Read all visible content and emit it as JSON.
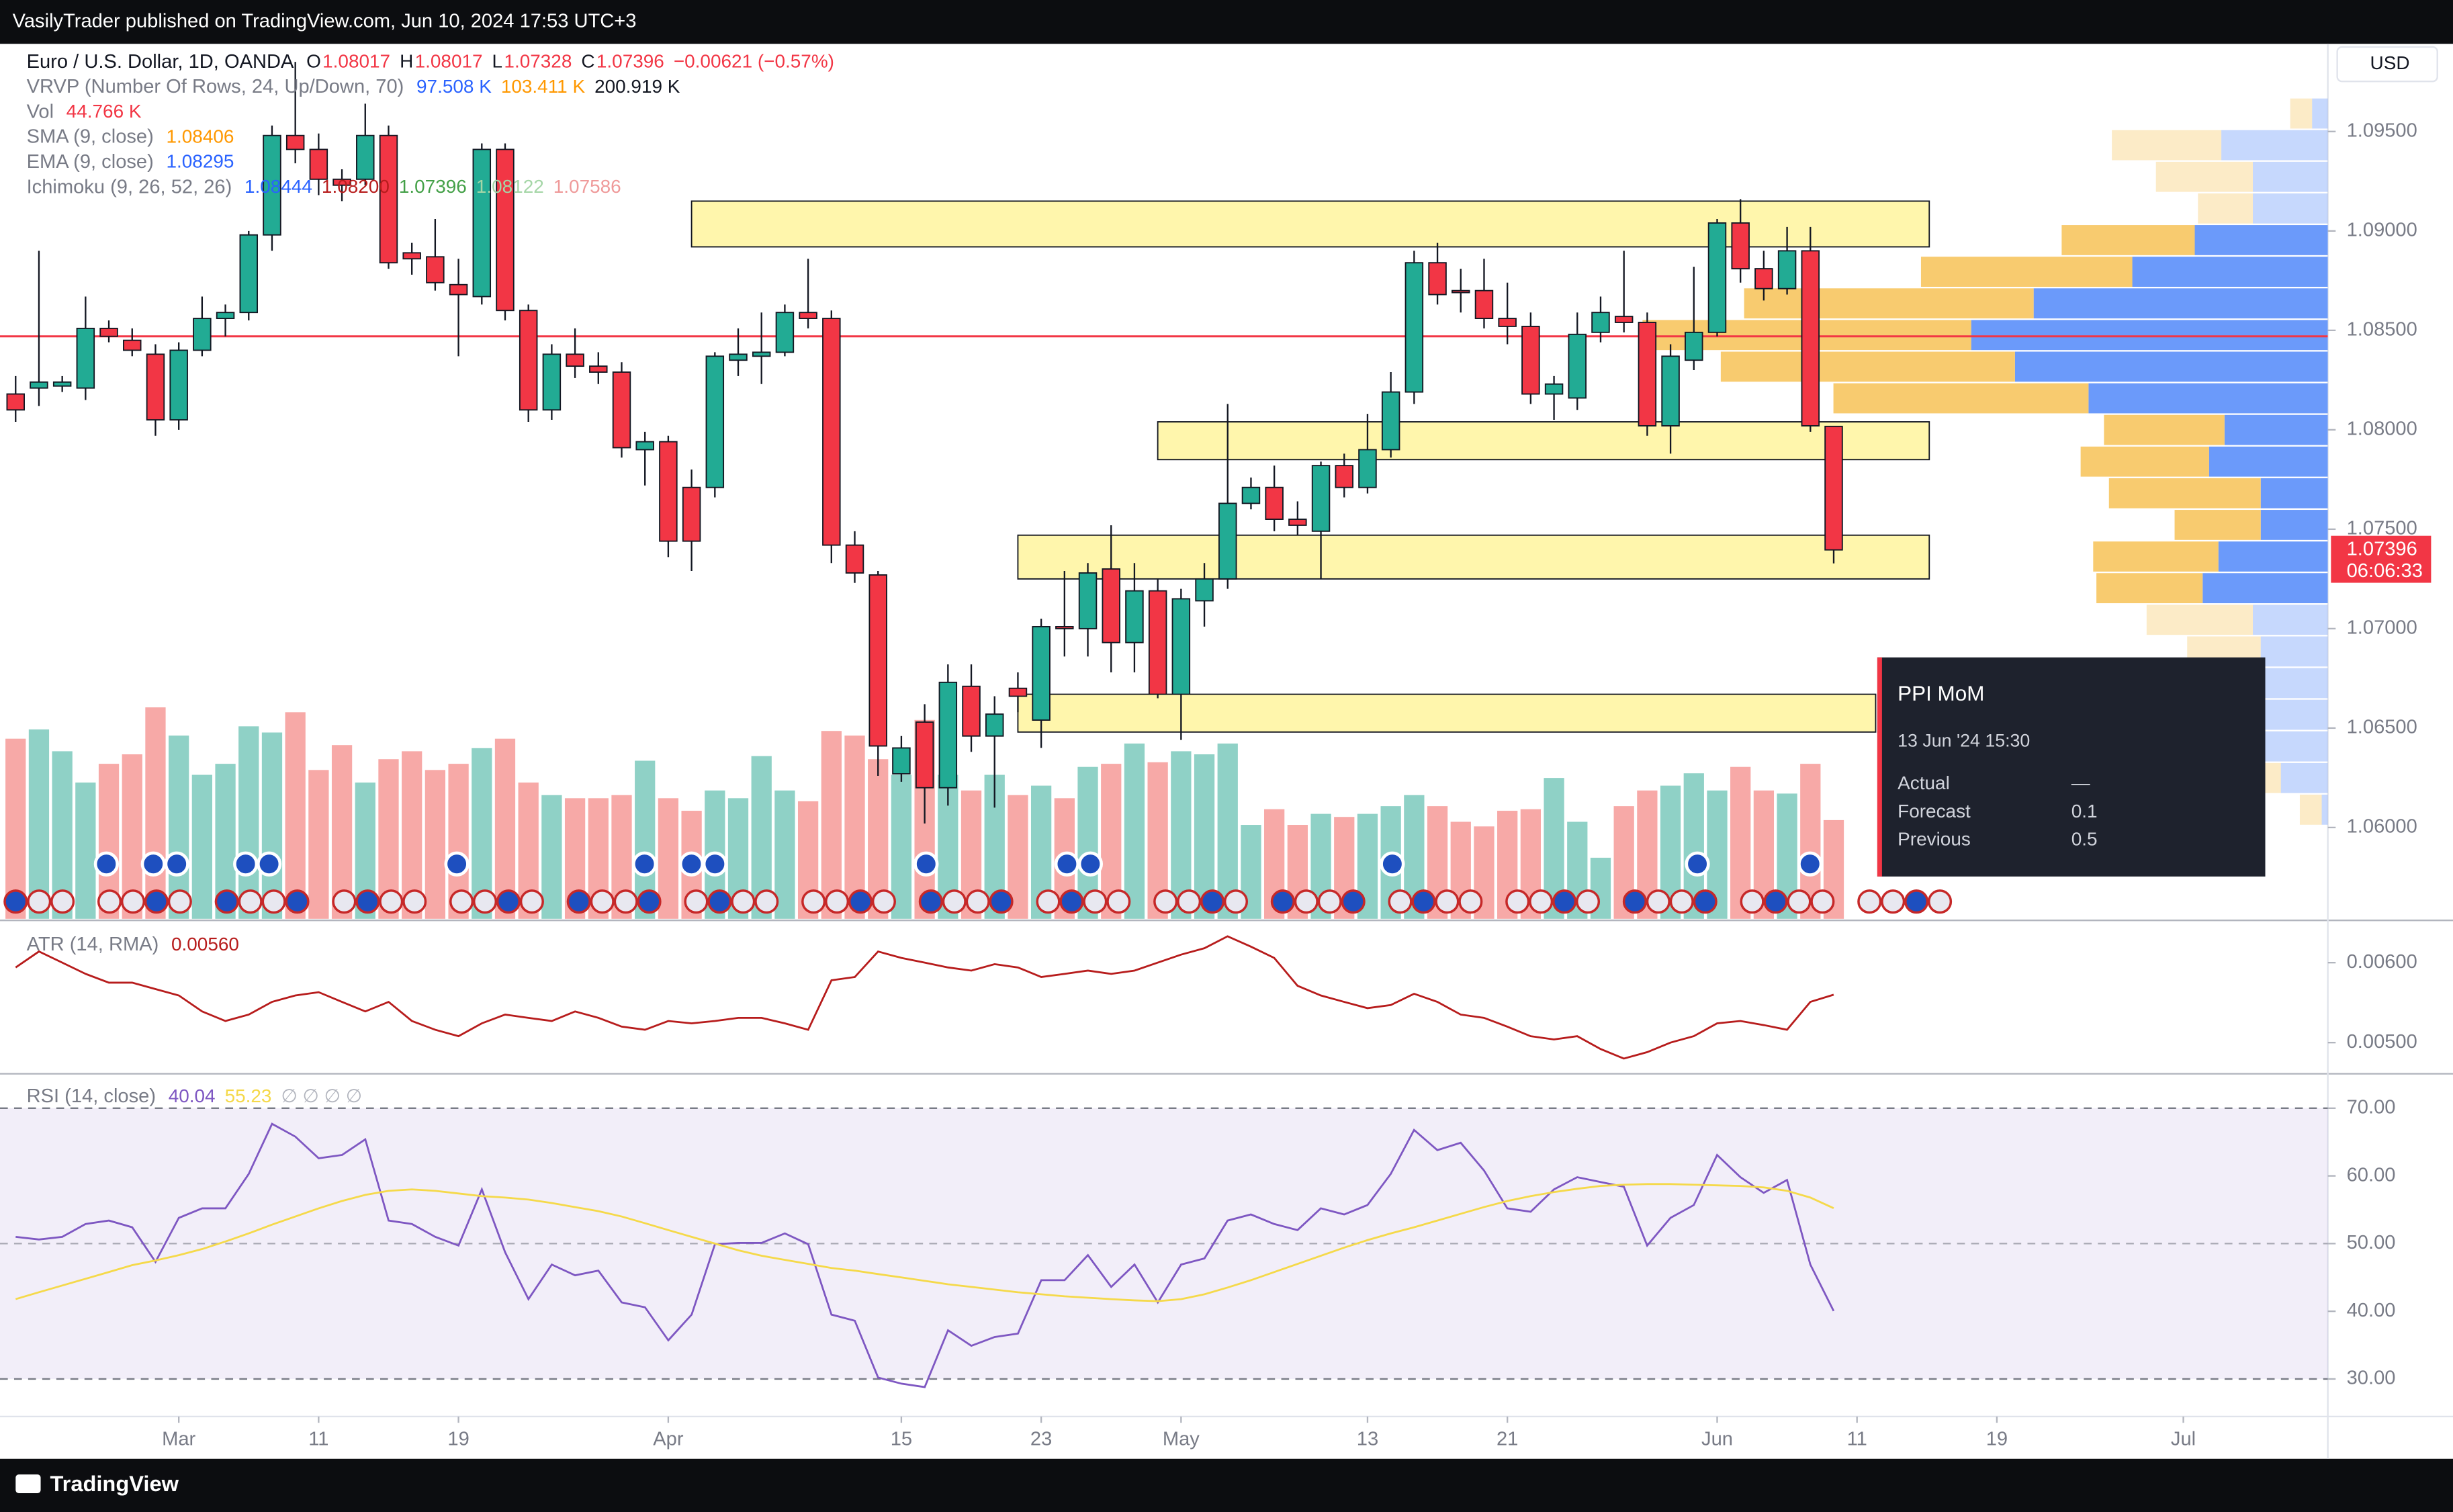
{
  "header": {
    "published": "VasilyTrader published on TradingView.com, Jun 10, 2024 17:53 UTC+3",
    "currency": "USD",
    "footer": "TradingView"
  },
  "legend": [
    {
      "label": "Euro / U.S. Dollar, 1D, OANDA",
      "values": [
        "O",
        "1.08017",
        "H",
        "1.08017",
        "L",
        "1.07328",
        "C",
        "1.07396",
        "−0.00621 (−0.57%)"
      ],
      "colors": [
        "#131722",
        "#f23645",
        "#131722",
        "#f23645",
        "#131722",
        "#f23645",
        "#131722",
        "#f23645",
        "#f23645"
      ]
    },
    {
      "label": "VRVP (Number Of Rows, 24, Up/Down, 70)",
      "values": [
        "97.508 K",
        "103.411 K",
        "200.919 K"
      ],
      "colors": [
        "#2962ff",
        "#ff9800",
        "#131722"
      ]
    },
    {
      "label": "Vol",
      "values": [
        "44.766 K"
      ],
      "colors": [
        "#f23645"
      ]
    },
    {
      "label": "SMA (9, close)",
      "values": [
        "1.08406"
      ],
      "colors": [
        "#ff9800"
      ]
    },
    {
      "label": "EMA (9, close)",
      "values": [
        "1.08295"
      ],
      "colors": [
        "#2962ff"
      ]
    },
    {
      "label": "Ichimoku (9, 26, 52, 26)",
      "values": [
        "1.08444",
        "1.08200",
        "1.07396",
        "1.08122",
        "1.07586"
      ],
      "colors": [
        "#2962ff",
        "#b71c1c",
        "#43a047",
        "#a5d6a7",
        "#ef9a9a"
      ]
    }
  ],
  "last_price_label": {
    "price": "1.07396",
    "countdown": "06:06:33"
  },
  "tooltip": {
    "title": "PPI MoM",
    "time": "13 Jun '24 15:30",
    "rows": [
      [
        "Actual",
        "—"
      ],
      [
        "Forecast",
        "0.1"
      ],
      [
        "Previous",
        "0.5"
      ]
    ]
  },
  "chart_data": [
    {
      "type": "candlestick",
      "up_color": "#22ab94",
      "down_color": "#f23645",
      "volume_up_color": "#8fd1c6",
      "volume_down_color": "#f7a9a7",
      "xlim": [
        -0.67,
        99.2
      ],
      "xticks": [
        {
          "value": 7,
          "label": "Mar"
        },
        {
          "value": 13,
          "label": "11"
        },
        {
          "value": 19,
          "label": "19"
        },
        {
          "value": 28,
          "label": "Apr"
        },
        {
          "value": 38,
          "label": "15"
        },
        {
          "value": 44,
          "label": "23"
        },
        {
          "value": 50,
          "label": "May"
        },
        {
          "value": 58,
          "label": "13"
        },
        {
          "value": 64,
          "label": "21"
        },
        {
          "value": 73,
          "label": "Jun"
        },
        {
          "value": 79,
          "label": "11"
        },
        {
          "value": 85,
          "label": "19"
        },
        {
          "value": 93,
          "label": "Jul"
        }
      ],
      "ylim": [
        1.05533,
        1.09941
      ],
      "yticks": [
        {
          "value": 1.095,
          "label": "1.09500"
        },
        {
          "value": 1.09,
          "label": "1.09000"
        },
        {
          "value": 1.085,
          "label": "1.08500"
        },
        {
          "value": 1.08,
          "label": "1.08000"
        },
        {
          "value": 1.075,
          "label": "1.07500"
        },
        {
          "value": 1.07,
          "label": "1.07000"
        },
        {
          "value": 1.065,
          "label": "1.06500"
        },
        {
          "value": 1.06,
          "label": "1.06000"
        }
      ],
      "open": [
        1.0818,
        1.0821,
        1.0822,
        1.0821,
        1.0851,
        1.0845,
        1.0838,
        1.0805,
        1.084,
        1.0856,
        1.0859,
        1.0898,
        1.0948,
        1.0941,
        1.0926,
        1.0926,
        1.0948,
        1.0889,
        1.0887,
        1.0873,
        1.0867,
        1.0941,
        1.086,
        1.081,
        1.0838,
        1.0832,
        1.0829,
        1.079,
        1.0794,
        1.0771,
        1.0771,
        1.0835,
        1.0837,
        1.0839,
        1.0859,
        1.0856,
        1.0742,
        1.0727,
        1.0627,
        1.0653,
        1.062,
        1.0671,
        1.0646,
        1.067,
        1.0654,
        1.0701,
        1.07,
        1.073,
        1.0693,
        1.0719,
        1.0667,
        1.0714,
        1.0725,
        1.0763,
        1.0771,
        1.0755,
        1.0749,
        1.0782,
        1.0771,
        1.079,
        1.0819,
        1.0884,
        1.087,
        1.087,
        1.0856,
        1.0852,
        1.0818,
        1.0816,
        1.0849,
        1.0857,
        1.0854,
        1.0802,
        1.0835,
        1.0849,
        1.0904,
        1.0881,
        1.0871,
        1.089,
        1.08017
      ],
      "high": [
        1.0827,
        1.089,
        1.0827,
        1.0867,
        1.0855,
        1.0851,
        1.0843,
        1.0844,
        1.0867,
        1.0863,
        1.09,
        1.0953,
        1.0985,
        1.0949,
        1.0931,
        1.0964,
        1.0953,
        1.0894,
        1.0906,
        1.0886,
        1.0944,
        1.0944,
        1.0863,
        1.0843,
        1.0851,
        1.0839,
        1.0834,
        1.0799,
        1.0797,
        1.078,
        1.0839,
        1.0851,
        1.0859,
        1.0863,
        1.0886,
        1.086,
        1.0749,
        1.0729,
        1.0646,
        1.0662,
        1.0682,
        1.0682,
        1.0666,
        1.0678,
        1.0705,
        1.0729,
        1.0733,
        1.0752,
        1.0733,
        1.0725,
        1.072,
        1.0733,
        1.0813,
        1.0776,
        1.0782,
        1.0764,
        1.0784,
        1.0788,
        1.0808,
        1.0829,
        1.089,
        1.0894,
        1.0881,
        1.0886,
        1.0874,
        1.0859,
        1.0827,
        1.0859,
        1.0867,
        1.089,
        1.0859,
        1.0843,
        1.0882,
        1.0906,
        1.0916,
        1.089,
        1.0902,
        1.0902,
        1.08017
      ],
      "low": [
        1.0804,
        1.0812,
        1.0819,
        1.0815,
        1.0844,
        1.0837,
        1.0797,
        1.08,
        1.0837,
        1.0847,
        1.0855,
        1.089,
        1.0934,
        1.0918,
        1.0915,
        1.0923,
        1.0881,
        1.0878,
        1.087,
        1.0837,
        1.0863,
        1.0855,
        1.0804,
        1.0805,
        1.0826,
        1.0823,
        1.0786,
        1.0772,
        1.0736,
        1.0729,
        1.0766,
        1.0827,
        1.0823,
        1.0837,
        1.0851,
        1.0733,
        1.0723,
        1.0626,
        1.0623,
        1.0602,
        1.0611,
        1.0638,
        1.061,
        1.0658,
        1.064,
        1.0686,
        1.0686,
        1.0678,
        1.0678,
        1.0665,
        1.0644,
        1.0701,
        1.072,
        1.076,
        1.0749,
        1.0747,
        1.0725,
        1.0766,
        1.0768,
        1.0786,
        1.0813,
        1.0863,
        1.0859,
        1.0851,
        1.0843,
        1.0813,
        1.0805,
        1.081,
        1.0844,
        1.0849,
        1.0797,
        1.0788,
        1.083,
        1.0847,
        1.0874,
        1.0865,
        1.0868,
        1.0799,
        1.07328
      ],
      "close": [
        1.081,
        1.0824,
        1.0824,
        1.0851,
        1.0847,
        1.084,
        1.0805,
        1.084,
        1.0856,
        1.0859,
        1.0898,
        1.0948,
        1.0941,
        1.0926,
        1.0923,
        1.0948,
        1.0884,
        1.0886,
        1.0874,
        1.0868,
        1.0941,
        1.086,
        1.081,
        1.0838,
        1.0832,
        1.0829,
        1.0791,
        1.0794,
        1.0744,
        1.0744,
        1.0837,
        1.0838,
        1.0839,
        1.0859,
        1.0856,
        1.0742,
        1.0728,
        1.0641,
        1.064,
        1.062,
        1.0673,
        1.0646,
        1.0657,
        1.0666,
        1.0701,
        1.07,
        1.0728,
        1.0693,
        1.0719,
        1.0667,
        1.0715,
        1.0725,
        1.0763,
        1.0771,
        1.0755,
        1.0752,
        1.0782,
        1.0771,
        1.079,
        1.0819,
        1.0884,
        1.0868,
        1.0869,
        1.0856,
        1.0852,
        1.0818,
        1.0823,
        1.0848,
        1.0859,
        1.0854,
        1.0802,
        1.0837,
        1.0849,
        1.0904,
        1.0881,
        1.0871,
        1.089,
        1.0802,
        1.07396
      ],
      "volume": [
        81.7,
        85.9,
        76.0,
        61.8,
        70.3,
        74.6,
        95.9,
        83.1,
        65.3,
        70.3,
        87.3,
        84.5,
        93.7,
        67.5,
        78.8,
        61.8,
        72.4,
        76.0,
        67.5,
        70.3,
        77.4,
        81.7,
        61.8,
        56.1,
        54.7,
        54.7,
        56.1,
        71.7,
        54.7,
        49.0,
        58.2,
        54.7,
        73.8,
        58.2,
        53.3,
        85.2,
        83.1,
        72.4,
        65.3,
        90.2,
        65.3,
        58.2,
        65.3,
        56.1,
        60.4,
        54.7,
        68.9,
        70.3,
        79.5,
        71.0,
        76.0,
        74.6,
        79.5,
        42.6,
        49.7,
        42.6,
        47.6,
        46.2,
        47.6,
        51.1,
        56.1,
        51.1,
        44.0,
        41.9,
        49.0,
        49.7,
        63.9,
        44.0,
        27.7,
        51.1,
        58.2,
        60.4,
        66.0,
        58.2,
        68.9,
        58.2,
        56.8,
        70.3,
        44.766
      ],
      "hline": {
        "value": 1.0847,
        "color": "#f23645"
      },
      "zones": [
        {
          "top": 1.0915,
          "bottom": 1.0892
        },
        {
          "top": 1.0804,
          "bottom": 1.0785
        },
        {
          "top": 1.0747,
          "bottom": 1.0725
        },
        {
          "top": 1.0667,
          "bottom": 1.0648
        }
      ],
      "vrvp": {
        "range": [
          1.0601,
          1.0967
        ],
        "up_color": "#5b8ff9",
        "down_color": "#f7c55f",
        "value_area": [
          4,
          15
        ],
        "up": [
          0.54,
          3.65,
          2.57,
          2.57,
          4.56,
          6.7,
          10.08,
          12.22,
          10.72,
          8.2,
          3.54,
          4.07,
          2.3,
          2.3,
          3.75,
          4.29,
          2.57,
          2.3,
          2.68,
          3.0,
          3.0,
          1.61,
          0.21
        ],
        "down": [
          0.75,
          3.75,
          3.32,
          1.88,
          4.56,
          7.24,
          9.92,
          11.26,
          10.08,
          8.74,
          4.13,
          4.4,
          5.2,
          2.95,
          4.29,
          3.64,
          3.64,
          2.52,
          1.93,
          3.75,
          3.75,
          2.79,
          0.75
        ]
      }
    },
    {
      "type": "line",
      "ylim": [
        0.00463,
        0.00649
      ],
      "yticks": [
        {
          "value": 0.006,
          "label": "0.00600"
        },
        {
          "value": 0.005,
          "label": "0.00500"
        }
      ],
      "series": [
        {
          "name": "ATR (14, RMA)",
          "color": "#b71c1c",
          "values": [
            0.00594,
            0.00614,
            0.006,
            0.00586,
            0.00575,
            0.00575,
            0.00567,
            0.00559,
            0.00539,
            0.00527,
            0.00535,
            0.00551,
            0.00559,
            0.00563,
            0.00551,
            0.00539,
            0.00551,
            0.00527,
            0.00516,
            0.00508,
            0.00524,
            0.00535,
            0.00531,
            0.00527,
            0.00539,
            0.00531,
            0.0052,
            0.00516,
            0.00527,
            0.00524,
            0.00527,
            0.00531,
            0.00531,
            0.00524,
            0.00516,
            0.00578,
            0.00582,
            0.00614,
            0.00606,
            0.006,
            0.00594,
            0.0059,
            0.00598,
            0.00594,
            0.00582,
            0.00586,
            0.0059,
            0.00586,
            0.0059,
            0.006,
            0.0061,
            0.00618,
            0.00633,
            0.0062,
            0.00606,
            0.00571,
            0.00559,
            0.00551,
            0.00543,
            0.00547,
            0.00561,
            0.00551,
            0.00535,
            0.00531,
            0.0052,
            0.00508,
            0.00504,
            0.00508,
            0.00492,
            0.0048,
            0.00488,
            0.005,
            0.00508,
            0.00524,
            0.00527,
            0.00522,
            0.00516,
            0.00551,
            0.0056
          ]
        }
      ],
      "value_labels": [
        "0.00560"
      ]
    },
    {
      "type": "line",
      "ylim": [
        24.45,
        74.86
      ],
      "yticks": [
        {
          "value": 70,
          "label": "70.00"
        },
        {
          "value": 60,
          "label": "60.00"
        },
        {
          "value": 50,
          "label": "50.00"
        },
        {
          "value": 40,
          "label": "40.00"
        },
        {
          "value": 30,
          "label": "30.00"
        }
      ],
      "band": [
        30,
        70
      ],
      "midline": 50,
      "series": [
        {
          "name": "RSI (14, close)",
          "color": "#7e57c2",
          "values": [
            51.0,
            50.6,
            51.0,
            52.9,
            53.4,
            52.4,
            47.3,
            53.8,
            55.2,
            55.2,
            60.3,
            67.7,
            65.8,
            62.6,
            63.1,
            65.4,
            53.4,
            52.9,
            51.0,
            49.7,
            58.0,
            48.7,
            41.8,
            46.9,
            45.3,
            46.0,
            41.3,
            40.6,
            35.7,
            39.5,
            49.9,
            50.1,
            50.1,
            51.5,
            49.9,
            39.5,
            38.6,
            30.2,
            29.3,
            28.8,
            37.2,
            34.9,
            36.2,
            36.7,
            44.6,
            44.6,
            48.3,
            43.6,
            46.9,
            41.3,
            46.9,
            47.8,
            53.4,
            54.3,
            52.9,
            52.0,
            55.2,
            54.3,
            55.7,
            60.3,
            66.8,
            63.8,
            64.9,
            60.8,
            55.2,
            54.7,
            58.0,
            59.8,
            59.1,
            58.4,
            49.7,
            53.8,
            55.7,
            63.1,
            59.8,
            57.5,
            59.4,
            46.9,
            40.04
          ]
        },
        {
          "color": "#f5d94a",
          "values": [
            41.8,
            42.8,
            43.8,
            44.8,
            45.8,
            46.8,
            47.5,
            48.3,
            49.2,
            50.3,
            51.5,
            52.8,
            54.0,
            55.2,
            56.3,
            57.2,
            57.8,
            58.0,
            57.8,
            57.4,
            57.0,
            56.8,
            56.5,
            56.0,
            55.4,
            54.8,
            54.0,
            53.0,
            52.0,
            51.0,
            50.0,
            49.0,
            48.2,
            47.6,
            47.0,
            46.4,
            46.0,
            45.5,
            45.0,
            44.5,
            44.0,
            43.6,
            43.2,
            42.8,
            42.5,
            42.2,
            42.0,
            41.8,
            41.6,
            41.5,
            41.8,
            42.5,
            43.5,
            44.6,
            45.8,
            47.0,
            48.2,
            49.4,
            50.5,
            51.5,
            52.4,
            53.4,
            54.4,
            55.4,
            56.3,
            57.0,
            57.6,
            58.1,
            58.5,
            58.7,
            58.8,
            58.8,
            58.7,
            58.6,
            58.5,
            58.3,
            57.8,
            56.8,
            55.23
          ]
        }
      ],
      "value_labels": [
        "40.04",
        "55.23",
        "∅ ∅ ∅ ∅"
      ]
    }
  ]
}
